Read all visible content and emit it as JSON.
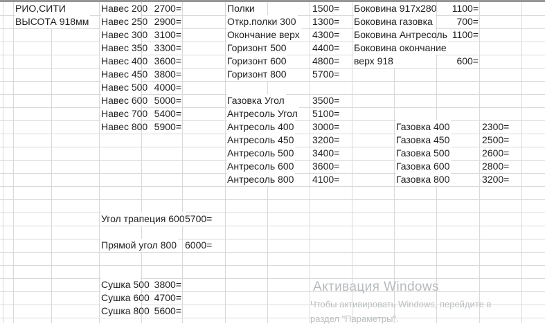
{
  "colors": {
    "grid_line": "#d9d9d9",
    "top_border": "#979797",
    "text": "#212121",
    "watermark": "#b6babd"
  },
  "sheet_header": {
    "brand": "РИО,СИТИ",
    "height_note": "ВЫСОТА 918мм"
  },
  "price_groups": [
    {
      "id": "naves",
      "items": [
        {
          "label": "Навес 200",
          "price": "2700="
        },
        {
          "label": "Навес 250",
          "price": "2900="
        },
        {
          "label": "Навес 300",
          "price": "3100="
        },
        {
          "label": "Навес 350",
          "price": "3300="
        },
        {
          "label": "Навес 400",
          "price": "3600="
        },
        {
          "label": "Навес 450",
          "price": "3800="
        },
        {
          "label": "Навес 500",
          "price": "4000="
        },
        {
          "label": "Навес 600",
          "price": "5000="
        },
        {
          "label": "Навес 700",
          "price": "5400="
        },
        {
          "label": "Навес 800",
          "price": "5900="
        }
      ]
    },
    {
      "id": "shelves",
      "items": [
        {
          "label": "Полки",
          "price": "1500="
        },
        {
          "label": "Откр.полки 300",
          "price": "1300="
        },
        {
          "label": "Окончание верх",
          "price": "4300="
        },
        {
          "label": "Горизонт 500",
          "price": "4400="
        },
        {
          "label": "Горизонт 600",
          "price": "4800="
        },
        {
          "label": "Горизонт 800",
          "price": "5700="
        }
      ]
    },
    {
      "id": "antresol",
      "items": [
        {
          "label": "Газовка Угол",
          "price": "3500="
        },
        {
          "label": "Антресоль Угол",
          "price": "5100="
        },
        {
          "label": "Антресоль 400",
          "price": "3000="
        },
        {
          "label": "Антресоль 450",
          "price": "3200="
        },
        {
          "label": "Антресоль 500",
          "price": "3400="
        },
        {
          "label": "Антресоль 600",
          "price": "3600="
        },
        {
          "label": "Антресоль 800",
          "price": "4100="
        }
      ]
    },
    {
      "id": "bokovina",
      "items": [
        {
          "label": "Боковина 917х280",
          "price": "1100="
        },
        {
          "label": "Боковина газовка",
          "price": "700="
        },
        {
          "label": "Боковина Антресоль",
          "price": "1100="
        },
        {
          "label": "Боковина окончание",
          "price": ""
        },
        {
          "label": "верх 918",
          "price": "600="
        }
      ]
    },
    {
      "id": "gazovka",
      "items": [
        {
          "label": "Газовка 400",
          "price": "2300="
        },
        {
          "label": "Газовка 450",
          "price": "2500="
        },
        {
          "label": "Газовка 500",
          "price": "2600="
        },
        {
          "label": "Газовка 600",
          "price": "2800="
        },
        {
          "label": "Газовка 800",
          "price": "3200="
        }
      ]
    },
    {
      "id": "corners",
      "items": [
        {
          "label": "Угол трапеция 600",
          "price": "5700="
        },
        {
          "label": "Прямой угол 800",
          "price": "6000="
        }
      ]
    },
    {
      "id": "sushka",
      "items": [
        {
          "label": "Сушка 500",
          "price": "3800="
        },
        {
          "label": "Сушка 600",
          "price": "4700="
        },
        {
          "label": "Сушка 800",
          "price": "5600="
        }
      ]
    }
  ],
  "watermark": {
    "title": "Активация Windows",
    "line1": "Чтобы активировать Windows, перейдите в",
    "line2": "раздел \"Параметры\"."
  }
}
